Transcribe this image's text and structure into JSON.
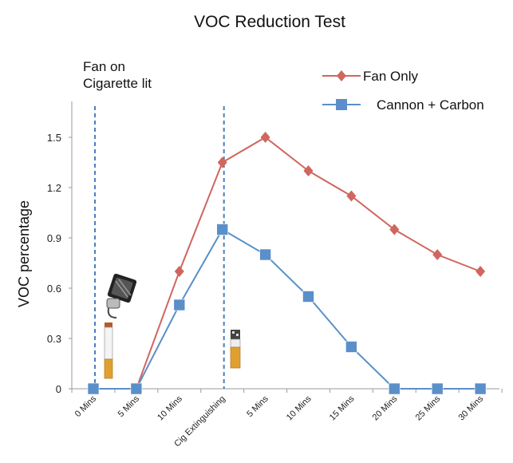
{
  "chart_data": {
    "type": "line",
    "title": "VOC Reduction Test",
    "xlabel": "",
    "ylabel": "VOC percentage",
    "categories": [
      "0 Mins",
      "5 Mins",
      "10 Mins",
      "Cig Extinguishing",
      "5 Mins",
      "10 Mins",
      "15 Mins",
      "20 Mins",
      "25 Mins",
      "30 Mins"
    ],
    "yticks": [
      "0",
      "0.3",
      "0.6",
      "0.9",
      "1.2",
      "1.5"
    ],
    "ylim": [
      0,
      1.7
    ],
    "grid": false,
    "legend_position": "top-right",
    "series": [
      {
        "name": "Fan Only",
        "marker": "diamond",
        "color": "#d0665f",
        "values": [
          0,
          0,
          0.7,
          1.35,
          1.5,
          1.3,
          1.15,
          0.95,
          0.8,
          0.7
        ]
      },
      {
        "name": "Cannon + Carbon",
        "marker": "square",
        "color": "#5b8fc9",
        "values": [
          0,
          0,
          0.5,
          0.95,
          0.8,
          0.55,
          0.25,
          0,
          0,
          0
        ]
      }
    ],
    "event_lines": [
      {
        "category_index": 0,
        "color": "#4a7fc1"
      },
      {
        "category_index": 3,
        "color": "#4a7fc1"
      }
    ],
    "annotations": [
      "Fan on",
      "Cigarette lit"
    ]
  }
}
